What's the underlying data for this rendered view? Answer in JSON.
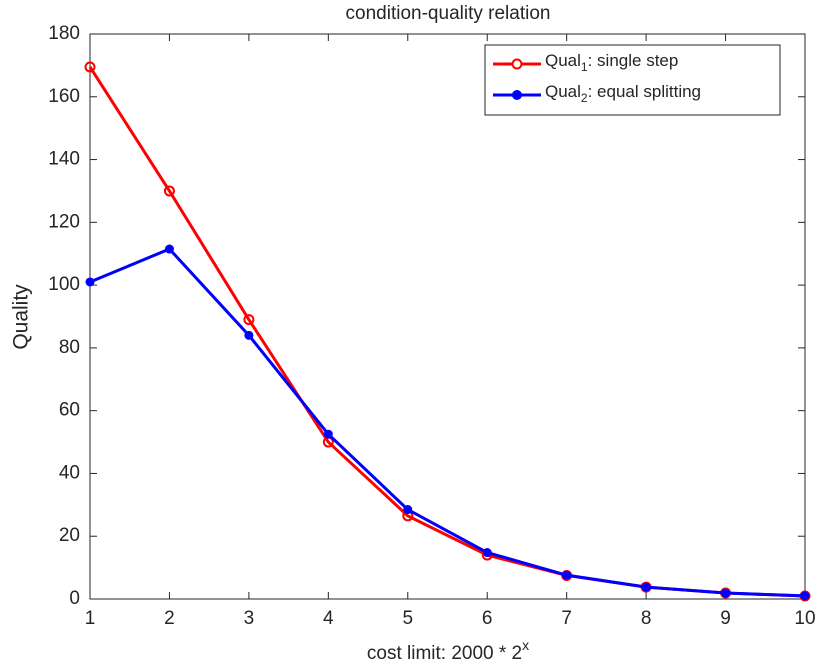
{
  "chart_data": {
    "type": "line",
    "title": "condition-quality relation",
    "x_label": "cost limit: 2000 * 2x",
    "y_label": "Quality",
    "x": [
      1,
      2,
      3,
      4,
      5,
      6,
      7,
      8,
      9,
      10
    ],
    "series": [
      {
        "name": "Qual1: single step",
        "color": "#ff0000",
        "marker": "open-circle",
        "values": [
          169.5,
          130,
          89,
          50,
          26.5,
          14,
          7.5,
          3.8,
          1.9,
          0.95
        ]
      },
      {
        "name": "Qual2: equal splitting",
        "color": "#0000ff",
        "marker": "filled-circle",
        "values": [
          101,
          111.5,
          84,
          52.5,
          28.5,
          14.8,
          7.6,
          3.8,
          1.9,
          1
        ]
      }
    ],
    "xlim": [
      1,
      10
    ],
    "xticks": [
      1,
      2,
      3,
      4,
      5,
      6,
      7,
      8,
      9,
      10
    ],
    "ylim": [
      0,
      180
    ],
    "yticks": [
      0,
      20,
      40,
      60,
      80,
      100,
      120,
      140,
      160,
      180
    ],
    "grid": false,
    "legend": "upper right"
  }
}
